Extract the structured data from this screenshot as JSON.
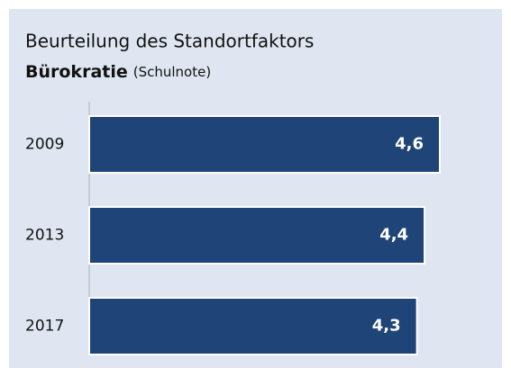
{
  "chart_data": {
    "type": "hbar",
    "title": "Beurteilung des Standortfaktors",
    "subtitle": "Bürokratie",
    "unit_note": "(Schulnote)",
    "categories": [
      "2009",
      "2013",
      "2017"
    ],
    "values": [
      4.6,
      4.4,
      4.3
    ],
    "value_labels": [
      "4,6",
      "4,4",
      "4,3"
    ],
    "color": "#1f4477"
  }
}
